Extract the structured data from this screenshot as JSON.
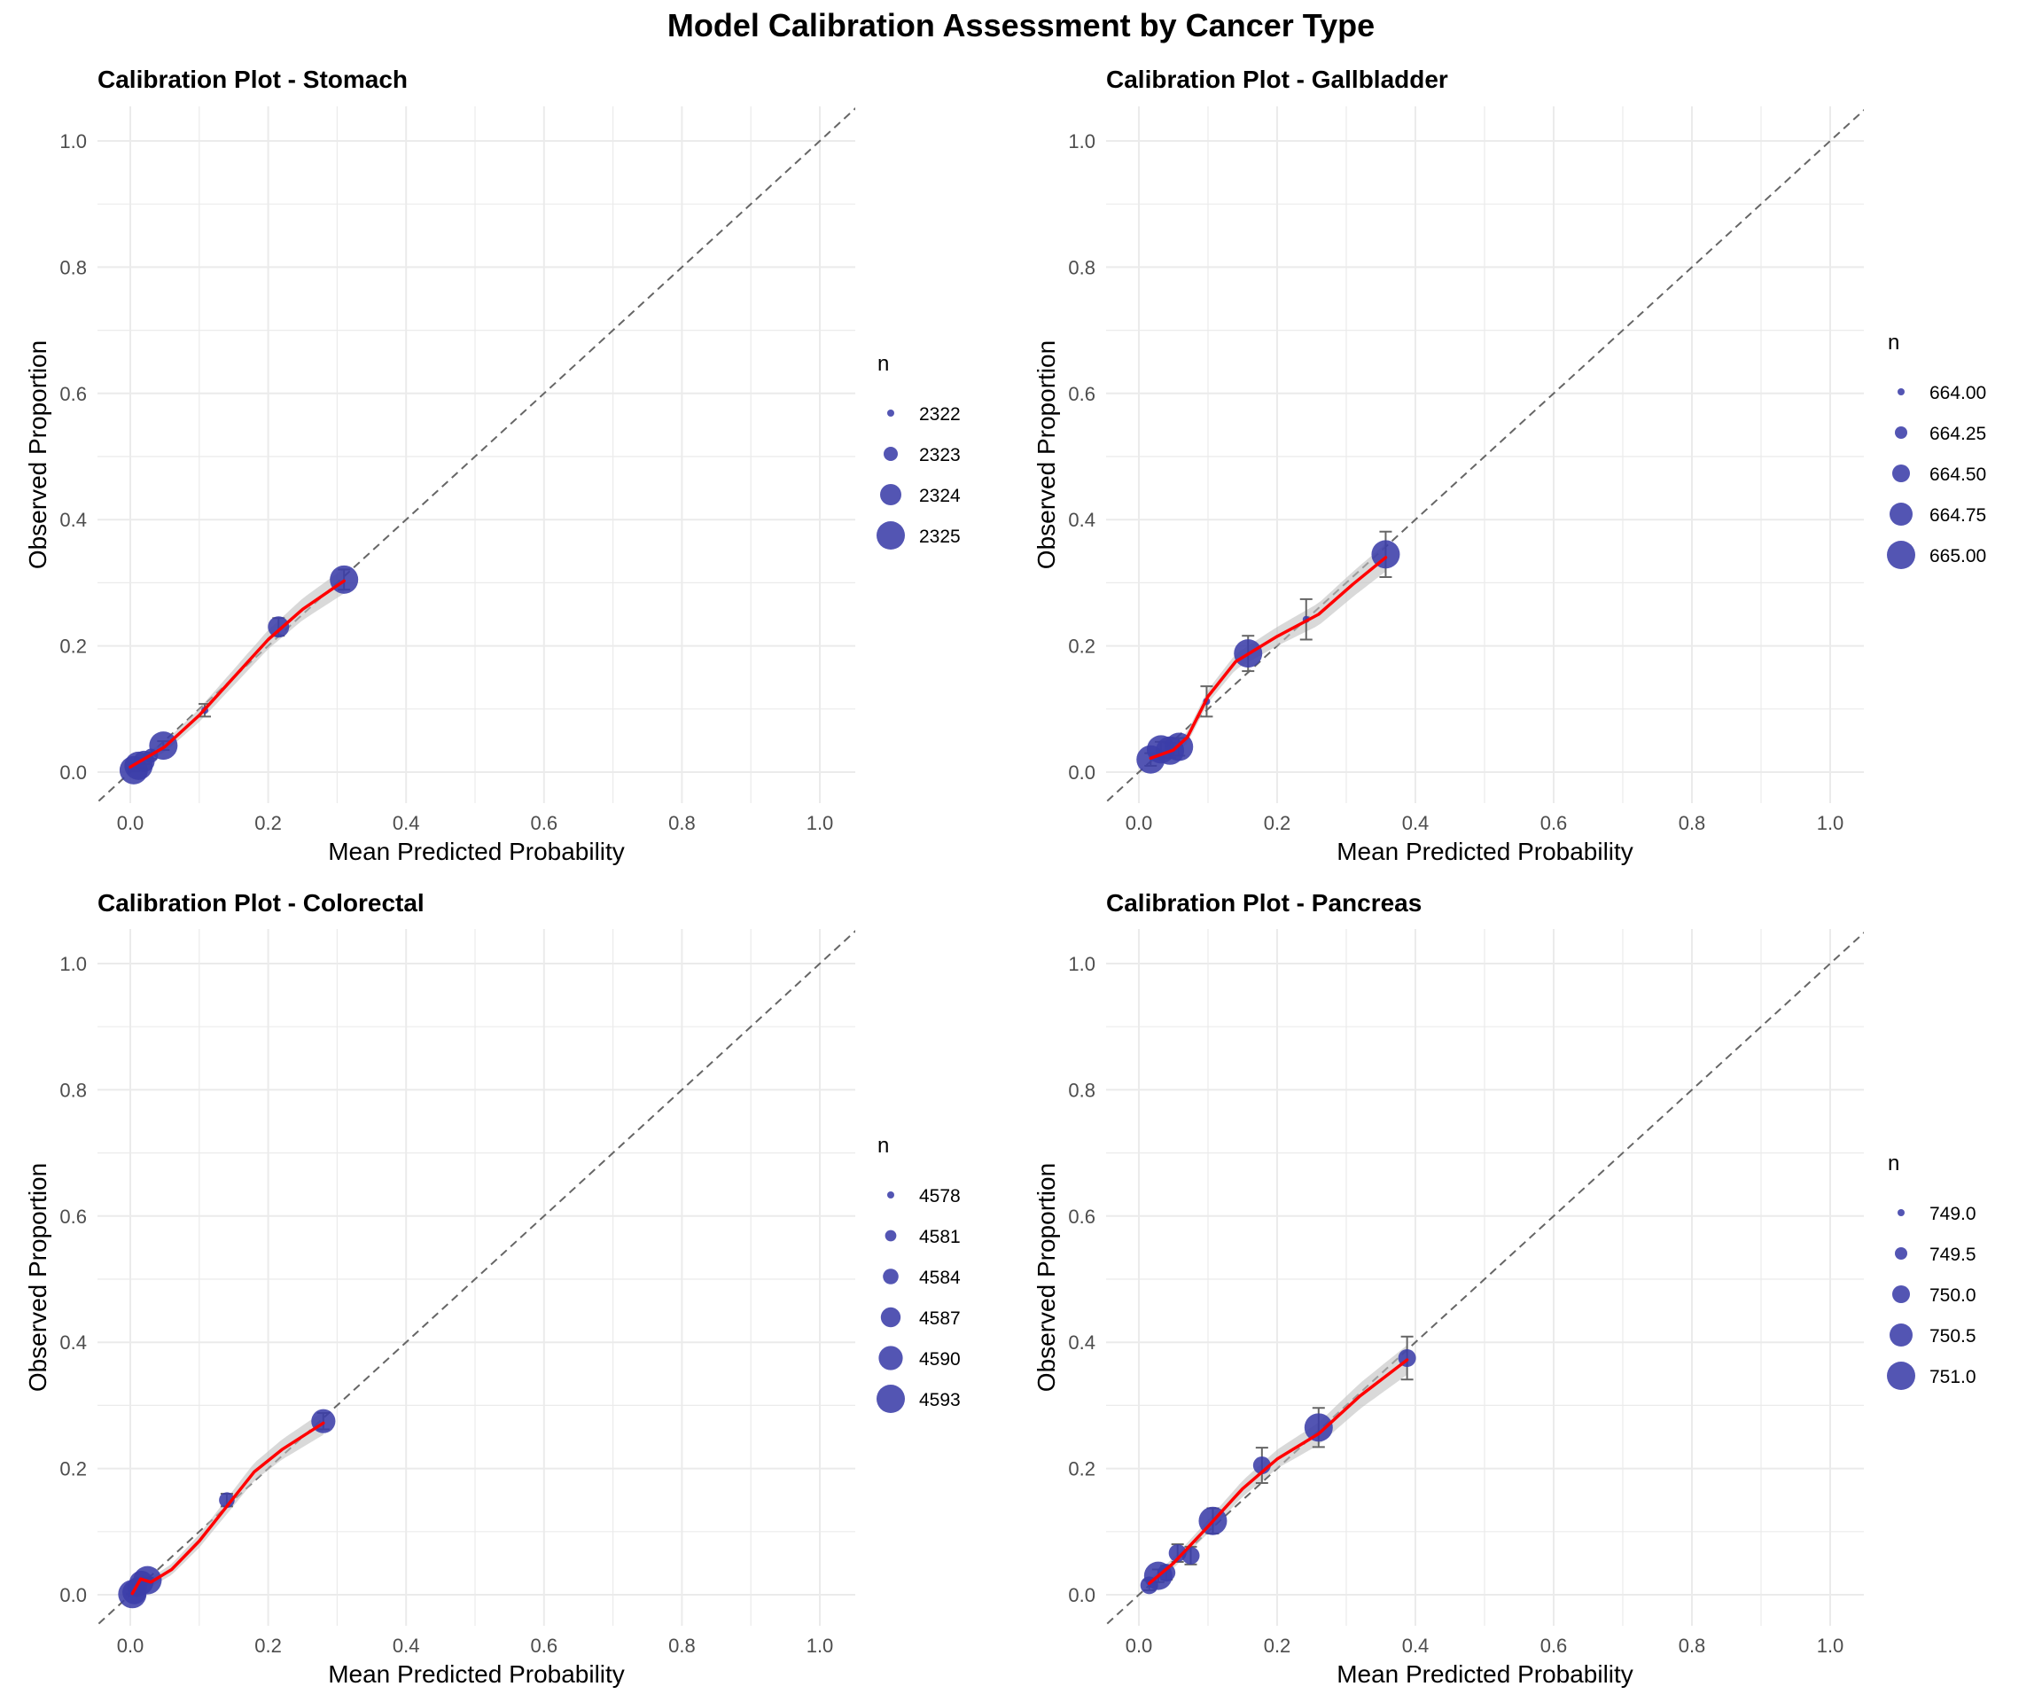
{
  "title": "Model Calibration Assessment by Cancer Type",
  "colors": {
    "point": "#3b3da8",
    "curve": "#ff0000",
    "band": "#bfbfbf",
    "diagonal": "#666666",
    "errorbar": "#666666",
    "grid": "#ebebeb"
  },
  "chart_data": [
    {
      "type": "scatter",
      "title": "Calibration Plot - Stomach",
      "xlabel": "Mean Predicted Probability",
      "ylabel": "Observed Proportion",
      "xlim": [
        0,
        1
      ],
      "ylim": [
        0,
        1
      ],
      "xticks": [
        "0.0",
        "0.2",
        "0.4",
        "0.6",
        "0.8",
        "1.0"
      ],
      "yticks": [
        "0.0",
        "0.2",
        "0.4",
        "0.6",
        "0.8",
        "1.0"
      ],
      "grid": true,
      "reference_line": "y = x (dashed)",
      "legend": {
        "title": "n",
        "placement": "right",
        "entries": [
          "2322",
          "2323",
          "2324",
          "2325"
        ],
        "sizes": [
          2322,
          2323,
          2324,
          2325
        ]
      },
      "points": [
        {
          "x": 0.005,
          "y": 0.003,
          "n": 2325,
          "err": 0.002
        },
        {
          "x": 0.012,
          "y": 0.01,
          "n": 2325,
          "err": 0.003
        },
        {
          "x": 0.02,
          "y": 0.017,
          "n": 2324,
          "err": 0.004
        },
        {
          "x": 0.03,
          "y": 0.026,
          "n": 2323,
          "err": 0.005
        },
        {
          "x": 0.048,
          "y": 0.042,
          "n": 2325,
          "err": 0.007
        },
        {
          "x": 0.108,
          "y": 0.098,
          "n": 2322,
          "err": 0.01
        },
        {
          "x": 0.215,
          "y": 0.23,
          "n": 2324,
          "err": 0.014
        },
        {
          "x": 0.31,
          "y": 0.305,
          "n": 2325,
          "err": 0.016
        }
      ],
      "smooth": [
        [
          0.0,
          0.008
        ],
        [
          0.05,
          0.04
        ],
        [
          0.1,
          0.09
        ],
        [
          0.15,
          0.15
        ],
        [
          0.2,
          0.21
        ],
        [
          0.25,
          0.258
        ],
        [
          0.31,
          0.303
        ]
      ]
    },
    {
      "type": "scatter",
      "title": "Calibration Plot - Gallbladder",
      "xlabel": "Mean Predicted Probability",
      "ylabel": "Observed Proportion",
      "xlim": [
        0,
        1
      ],
      "ylim": [
        0,
        1
      ],
      "xticks": [
        "0.0",
        "0.2",
        "0.4",
        "0.6",
        "0.8",
        "1.0"
      ],
      "yticks": [
        "0.0",
        "0.2",
        "0.4",
        "0.6",
        "0.8",
        "1.0"
      ],
      "grid": true,
      "reference_line": "y = x (dashed)",
      "legend": {
        "title": "n",
        "placement": "right",
        "entries": [
          "664.00",
          "664.25",
          "664.50",
          "664.75",
          "665.00"
        ],
        "sizes": [
          664.0,
          664.25,
          664.5,
          664.75,
          665.0
        ]
      },
      "points": [
        {
          "x": 0.017,
          "y": 0.02,
          "n": 665,
          "err": 0.01
        },
        {
          "x": 0.032,
          "y": 0.036,
          "n": 665,
          "err": 0.012
        },
        {
          "x": 0.045,
          "y": 0.034,
          "n": 665,
          "err": 0.012
        },
        {
          "x": 0.058,
          "y": 0.04,
          "n": 665,
          "err": 0.014
        },
        {
          "x": 0.098,
          "y": 0.112,
          "n": 664,
          "err": 0.024
        },
        {
          "x": 0.158,
          "y": 0.188,
          "n": 665,
          "err": 0.028
        },
        {
          "x": 0.242,
          "y": 0.242,
          "n": 664,
          "err": 0.032
        },
        {
          "x": 0.357,
          "y": 0.345,
          "n": 665,
          "err": 0.036
        }
      ],
      "smooth": [
        [
          0.017,
          0.022
        ],
        [
          0.05,
          0.035
        ],
        [
          0.07,
          0.055
        ],
        [
          0.1,
          0.12
        ],
        [
          0.14,
          0.175
        ],
        [
          0.2,
          0.215
        ],
        [
          0.26,
          0.25
        ],
        [
          0.31,
          0.298
        ],
        [
          0.357,
          0.34
        ]
      ]
    },
    {
      "type": "scatter",
      "title": "Calibration Plot - Colorectal",
      "xlabel": "Mean Predicted Probability",
      "ylabel": "Observed Proportion",
      "xlim": [
        0,
        1
      ],
      "ylim": [
        0,
        1
      ],
      "xticks": [
        "0.0",
        "0.2",
        "0.4",
        "0.6",
        "0.8",
        "1.0"
      ],
      "yticks": [
        "0.0",
        "0.2",
        "0.4",
        "0.6",
        "0.8",
        "1.0"
      ],
      "grid": true,
      "reference_line": "y = x (dashed)",
      "legend": {
        "title": "n",
        "placement": "right",
        "entries": [
          "4578",
          "4581",
          "4584",
          "4587",
          "4590",
          "4593"
        ],
        "sizes": [
          4578,
          4581,
          4584,
          4587,
          4590,
          4593
        ]
      },
      "points": [
        {
          "x": 0.003,
          "y": 0.001,
          "n": 4593,
          "err": 0.001
        },
        {
          "x": 0.006,
          "y": 0.004,
          "n": 4590,
          "err": 0.002
        },
        {
          "x": 0.01,
          "y": 0.012,
          "n": 4587,
          "err": 0.003
        },
        {
          "x": 0.016,
          "y": 0.019,
          "n": 4590,
          "err": 0.004
        },
        {
          "x": 0.025,
          "y": 0.023,
          "n": 4593,
          "err": 0.004
        },
        {
          "x": 0.14,
          "y": 0.15,
          "n": 4584,
          "err": 0.01
        },
        {
          "x": 0.28,
          "y": 0.275,
          "n": 4590,
          "err": 0.013
        }
      ],
      "smooth": [
        [
          0.003,
          0.002
        ],
        [
          0.015,
          0.025
        ],
        [
          0.03,
          0.02
        ],
        [
          0.06,
          0.04
        ],
        [
          0.1,
          0.085
        ],
        [
          0.14,
          0.14
        ],
        [
          0.18,
          0.195
        ],
        [
          0.22,
          0.23
        ],
        [
          0.28,
          0.272
        ]
      ]
    },
    {
      "type": "scatter",
      "title": "Calibration Plot - Pancreas",
      "xlabel": "Mean Predicted Probability",
      "ylabel": "Observed Proportion",
      "xlim": [
        0,
        1
      ],
      "ylim": [
        0,
        1
      ],
      "xticks": [
        "0.0",
        "0.2",
        "0.4",
        "0.6",
        "0.8",
        "1.0"
      ],
      "yticks": [
        "0.0",
        "0.2",
        "0.4",
        "0.6",
        "0.8",
        "1.0"
      ],
      "grid": true,
      "reference_line": "y = x (dashed)",
      "legend": {
        "title": "n",
        "placement": "right",
        "entries": [
          "749.0",
          "749.5",
          "750.0",
          "750.5",
          "751.0"
        ],
        "sizes": [
          749.0,
          749.5,
          750.0,
          750.5,
          751.0
        ]
      },
      "points": [
        {
          "x": 0.015,
          "y": 0.015,
          "n": 750,
          "err": 0.008
        },
        {
          "x": 0.028,
          "y": 0.03,
          "n": 751,
          "err": 0.01
        },
        {
          "x": 0.04,
          "y": 0.035,
          "n": 750,
          "err": 0.011
        },
        {
          "x": 0.056,
          "y": 0.066,
          "n": 750,
          "err": 0.014
        },
        {
          "x": 0.075,
          "y": 0.062,
          "n": 750,
          "err": 0.014
        },
        {
          "x": 0.107,
          "y": 0.117,
          "n": 751,
          "err": 0.02
        },
        {
          "x": 0.178,
          "y": 0.205,
          "n": 750,
          "err": 0.028
        },
        {
          "x": 0.26,
          "y": 0.265,
          "n": 751,
          "err": 0.031
        },
        {
          "x": 0.388,
          "y": 0.375,
          "n": 750,
          "err": 0.034
        }
      ],
      "smooth": [
        [
          0.015,
          0.018
        ],
        [
          0.05,
          0.05
        ],
        [
          0.1,
          0.108
        ],
        [
          0.15,
          0.168
        ],
        [
          0.2,
          0.215
        ],
        [
          0.26,
          0.255
        ],
        [
          0.32,
          0.315
        ],
        [
          0.388,
          0.372
        ]
      ]
    }
  ]
}
